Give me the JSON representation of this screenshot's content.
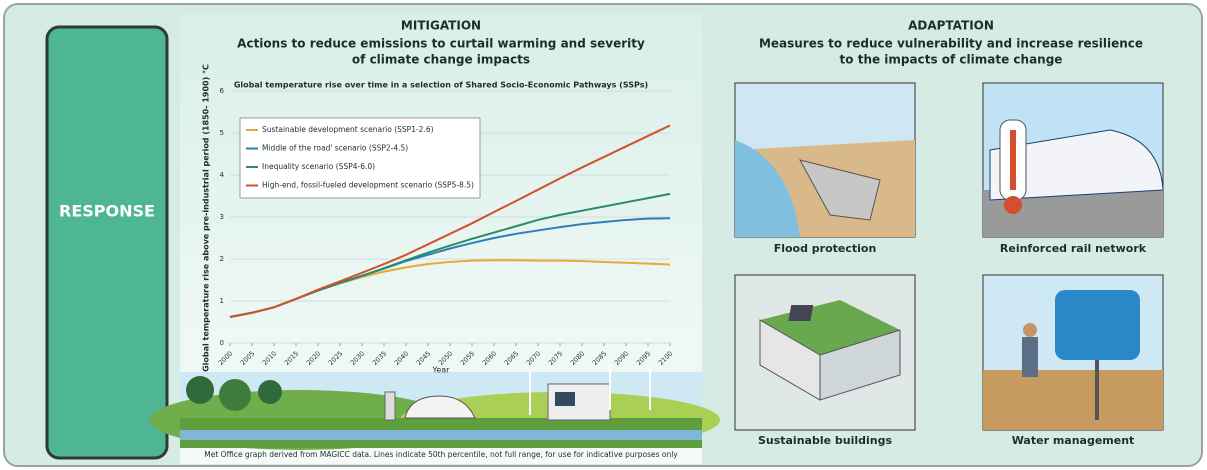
{
  "response": "RESPONSE",
  "mitigation": {
    "title": "MITIGATION",
    "subtitle_lines": [
      "Actions to reduce emissions to curtail warming and severity",
      "of climate change impacts"
    ],
    "footnote": "Met Office graph derived from MAGICC data. Lines indicate 50th percentile, not full range, for use for indicative purposes only"
  },
  "adaptation": {
    "title": "ADAPTATION",
    "subtitle_lines": [
      "Measures to reduce vulnerability and increase resilience",
      "to the impacts of climate change"
    ],
    "captions": [
      "Flood protection",
      "Reinforced rail network",
      "Sustainable buildings",
      "Water management"
    ]
  },
  "chart_data": {
    "type": "line",
    "title": "Global temperature rise over time in a selection of Shared Socio-Economic Pathways (SSPs)",
    "x_label": "Year",
    "y_label": "Global temperature rise above pre-industrial period (1850- 1900) °C",
    "x": [
      2000,
      2005,
      2010,
      2015,
      2020,
      2025,
      2030,
      2035,
      2040,
      2045,
      2050,
      2055,
      2060,
      2065,
      2070,
      2075,
      2080,
      2085,
      2090,
      2095,
      2100
    ],
    "xlim": [
      2000,
      2100
    ],
    "xticks": [
      2000,
      2005,
      2010,
      2015,
      2020,
      2025,
      2030,
      2035,
      2040,
      2045,
      2050,
      2055,
      2060,
      2065,
      2070,
      2075,
      2080,
      2085,
      2090,
      2095,
      2100
    ],
    "ylim": [
      0,
      6
    ],
    "yticks": [
      0,
      1,
      2,
      3,
      4,
      5,
      6
    ],
    "grid": true,
    "series": [
      {
        "name": "Sustainable development scenario (SSP1-2.6)",
        "color": "#e8a838",
        "values": [
          0.62,
          0.72,
          0.85,
          1.05,
          1.25,
          1.42,
          1.57,
          1.7,
          1.8,
          1.88,
          1.93,
          1.96,
          1.97,
          1.97,
          1.96,
          1.96,
          1.95,
          1.93,
          1.91,
          1.89,
          1.87
        ]
      },
      {
        "name": "Middle of the road' scenario (SSP2-4.5)",
        "color": "#2e7fb8",
        "values": [
          0.62,
          0.72,
          0.85,
          1.05,
          1.25,
          1.43,
          1.6,
          1.77,
          1.95,
          2.1,
          2.25,
          2.38,
          2.5,
          2.6,
          2.68,
          2.76,
          2.83,
          2.88,
          2.93,
          2.96,
          2.97
        ]
      },
      {
        "name": "Inequality scenario (SSP4-6.0)",
        "color": "#2a8a6a",
        "values": [
          0.62,
          0.72,
          0.85,
          1.05,
          1.25,
          1.43,
          1.6,
          1.78,
          1.97,
          2.15,
          2.32,
          2.48,
          2.63,
          2.78,
          2.93,
          3.05,
          3.15,
          3.25,
          3.35,
          3.45,
          3.55
        ]
      },
      {
        "name": "High-end, fossil-fueled development scenario (SSP5-8.5)",
        "color": "#d2502e",
        "values": [
          0.62,
          0.72,
          0.85,
          1.05,
          1.27,
          1.47,
          1.67,
          1.88,
          2.1,
          2.35,
          2.6,
          2.85,
          3.12,
          3.38,
          3.65,
          3.92,
          4.18,
          4.43,
          4.68,
          4.93,
          5.18
        ]
      }
    ]
  }
}
